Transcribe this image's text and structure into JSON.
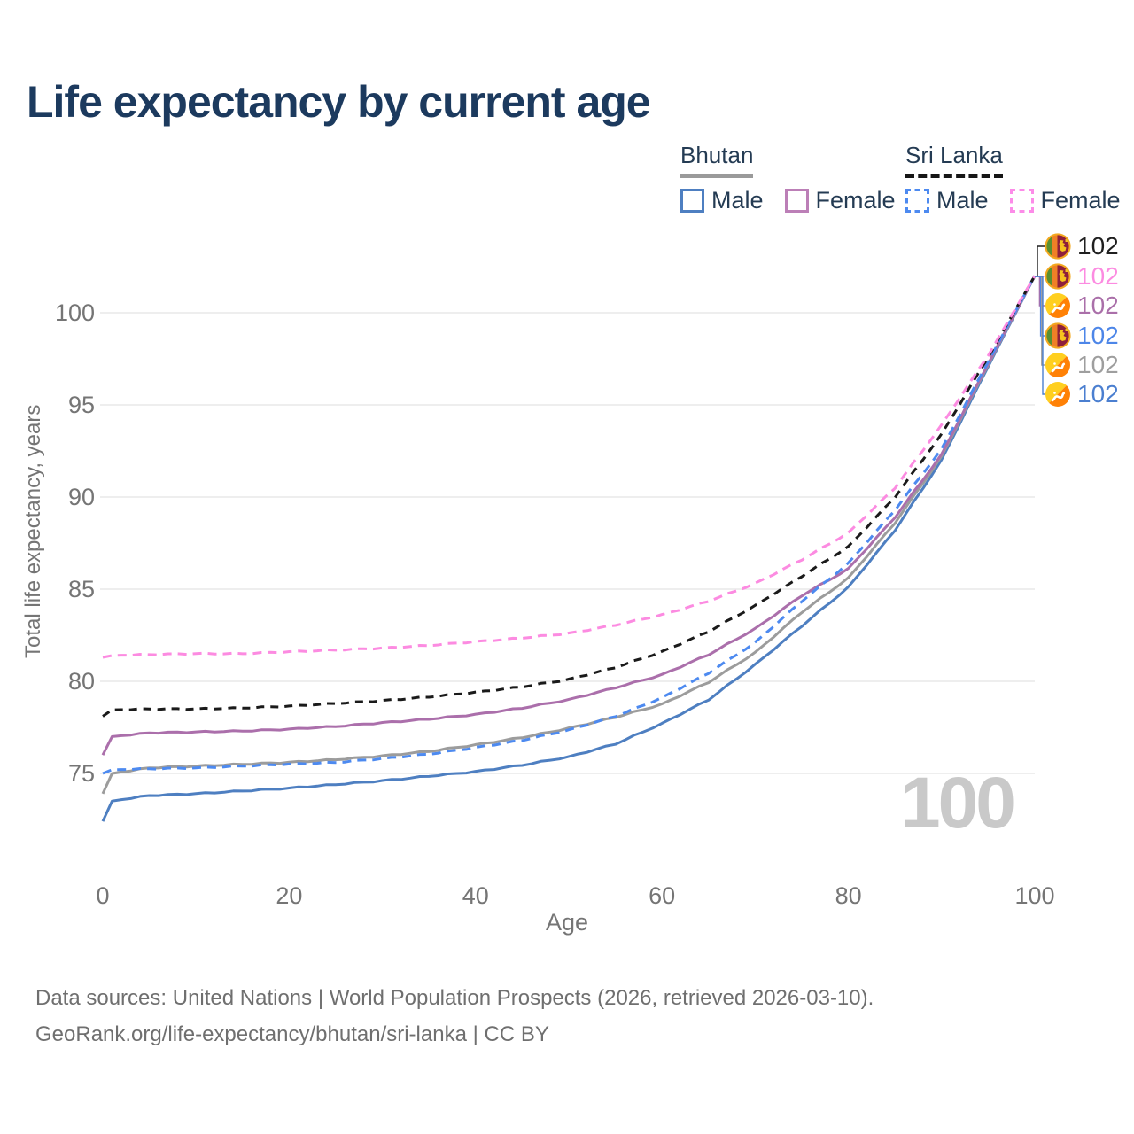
{
  "title": "Life expectancy by current age",
  "legend": {
    "bhutan": {
      "label": "Bhutan",
      "items": [
        {
          "label": "Male",
          "color": "#4e7fc1",
          "dash": false
        },
        {
          "label": "Female",
          "color": "#bc7fb7",
          "dash": false
        }
      ]
    },
    "sri_lanka": {
      "label": "Sri Lanka",
      "items": [
        {
          "label": "Male",
          "color": "#4d8af0",
          "dash": true
        },
        {
          "label": "Female",
          "color": "#fc8ce8",
          "dash": true
        }
      ]
    }
  },
  "axes": {
    "x": {
      "title": "Age",
      "ticks": [
        0,
        20,
        40,
        60,
        80,
        100
      ]
    },
    "y": {
      "title": "Total life expectancy, years",
      "ticks": [
        75,
        80,
        85,
        90,
        95,
        100
      ]
    }
  },
  "watermark": "100",
  "end_labels": [
    {
      "value": "102",
      "flag": "sri-lanka",
      "color": "#1f1f1f",
      "series": "Sri Lanka"
    },
    {
      "value": "102",
      "flag": "sri-lanka",
      "color": "#fc8be1",
      "series": "Sri Lanka Female"
    },
    {
      "value": "102",
      "flag": "bhutan",
      "color": "#aa6fa9",
      "series": "Bhutan Female"
    },
    {
      "value": "102",
      "flag": "sri-lanka",
      "color": "#4d86e8",
      "series": "Sri Lanka Male"
    },
    {
      "value": "102",
      "flag": "bhutan",
      "color": "#9e9e9e",
      "series": "Bhutan"
    },
    {
      "value": "102",
      "flag": "bhutan",
      "color": "#4b7fd0",
      "series": "Bhutan Male"
    }
  ],
  "footer": {
    "line1": "Data sources: United Nations | World Population Prospects (2026, retrieved 2026-03-10).",
    "line2": "GeoRank.org/life-expectancy/bhutan/sri-lanka | CC BY"
  },
  "chart_data": {
    "type": "line",
    "title": "Life expectancy by current age",
    "xlabel": "Age",
    "ylabel": "Total life expectancy, years",
    "xlim": [
      0,
      100
    ],
    "ylim": [
      72,
      103
    ],
    "grid": "horizontal",
    "legend_position": "top-right",
    "x_ages": [
      0,
      1,
      5,
      10,
      15,
      20,
      25,
      30,
      35,
      40,
      45,
      50,
      55,
      60,
      65,
      70,
      75,
      80,
      85,
      90,
      95,
      100
    ],
    "series": [
      {
        "id": "bhutan-male",
        "name": "Bhutan — Male",
        "country": "Bhutan",
        "sex": "Male",
        "color": "#4e7fc1",
        "dash": "",
        "values": [
          72.4,
          73.5,
          73.8,
          73.9,
          74.05,
          74.2,
          74.4,
          74.6,
          74.85,
          75.1,
          75.45,
          75.9,
          76.6,
          77.7,
          79.0,
          80.9,
          83.0,
          85.1,
          88.2,
          92.0,
          97.1,
          102
        ]
      },
      {
        "id": "bhutan",
        "name": "Bhutan — Total",
        "country": "Bhutan",
        "sex": "Both",
        "color": "#9c9c9c",
        "dash": "",
        "values": [
          73.9,
          75.0,
          75.3,
          75.4,
          75.5,
          75.6,
          75.75,
          75.95,
          76.2,
          76.55,
          76.95,
          77.45,
          78.05,
          78.75,
          79.95,
          81.55,
          83.75,
          85.6,
          88.6,
          92.2,
          97.2,
          102
        ]
      },
      {
        "id": "bhutan-female",
        "name": "Bhutan — Female",
        "country": "Bhutan",
        "sex": "Female",
        "color": "#ab6fab",
        "dash": "",
        "values": [
          76.0,
          77.0,
          77.2,
          77.25,
          77.3,
          77.4,
          77.55,
          77.75,
          77.95,
          78.2,
          78.55,
          79.0,
          79.65,
          80.35,
          81.45,
          82.85,
          84.65,
          86.1,
          88.9,
          92.3,
          97.25,
          102
        ]
      },
      {
        "id": "sri-lanka-male",
        "name": "Sri Lanka — Male",
        "country": "Sri Lanka",
        "sex": "Male",
        "color": "#4d8af0",
        "dash": "10 7",
        "values": [
          75.0,
          75.2,
          75.25,
          75.3,
          75.4,
          75.5,
          75.6,
          75.8,
          76.05,
          76.4,
          76.8,
          77.35,
          78.1,
          79.1,
          80.45,
          82.1,
          84.35,
          86.4,
          89.3,
          92.6,
          97.35,
          102
        ]
      },
      {
        "id": "sri-lanka",
        "name": "Sri Lanka — Total",
        "country": "Sri Lanka",
        "sex": "Both",
        "color": "#1a1a1a",
        "dash": "9 7",
        "values": [
          78.1,
          78.45,
          78.5,
          78.5,
          78.55,
          78.65,
          78.8,
          78.95,
          79.15,
          79.4,
          79.7,
          80.1,
          80.75,
          81.6,
          82.7,
          84.1,
          85.7,
          87.3,
          90.0,
          93.4,
          97.6,
          102
        ]
      },
      {
        "id": "sri-lanka-female",
        "name": "Sri Lanka — Female",
        "country": "Sri Lanka",
        "sex": "Female",
        "color": "#fc8be1",
        "dash": "10 7",
        "values": [
          81.3,
          81.4,
          81.45,
          81.5,
          81.5,
          81.6,
          81.7,
          81.8,
          81.95,
          82.15,
          82.35,
          82.6,
          83.05,
          83.6,
          84.35,
          85.3,
          86.6,
          88.05,
          90.5,
          93.9,
          97.7,
          102
        ]
      }
    ],
    "end_value_at_age_100": 102
  }
}
